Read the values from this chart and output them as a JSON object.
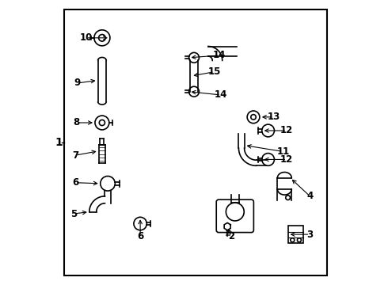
{
  "background_color": "#ffffff",
  "border_color": "#000000",
  "text_color": "#000000",
  "diagram_label": "1"
}
